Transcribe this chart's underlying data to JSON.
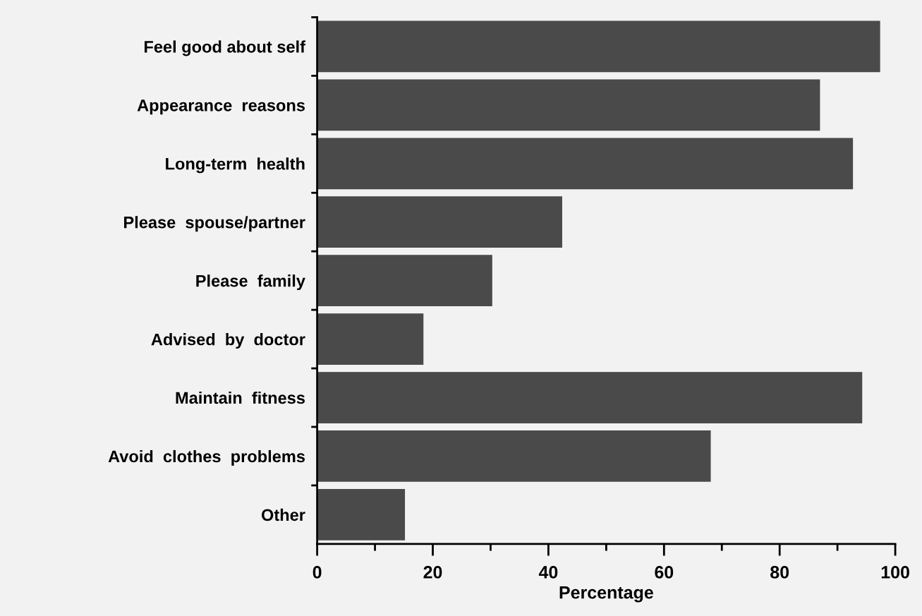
{
  "chart_data": {
    "type": "bar",
    "orientation": "horizontal",
    "xlabel": "Percentage",
    "categories": [
      "Feel good about self",
      "Appearance  reasons",
      "Long-term  health",
      "Please  spouse/partner",
      "Please  family",
      "Advised  by  doctor",
      "Maintain  fitness",
      "Avoid  clothes  problems",
      "Other"
    ],
    "values": [
      97.3,
      86.9,
      92.6,
      42.3,
      30.2,
      18.3,
      94.2,
      68.0,
      15.1
    ],
    "color": "#4a4a4a",
    "xlim": [
      0,
      100
    ],
    "xticks": [
      0,
      {
        "value": 10,
        "label": null
      },
      20,
      {
        "value": 30,
        "label": null
      },
      40,
      {
        "value": 50,
        "label": null
      },
      60,
      {
        "value": 70,
        "label": null
      },
      80,
      {
        "value": 90,
        "label": null
      },
      100
    ],
    "grid": false
  }
}
